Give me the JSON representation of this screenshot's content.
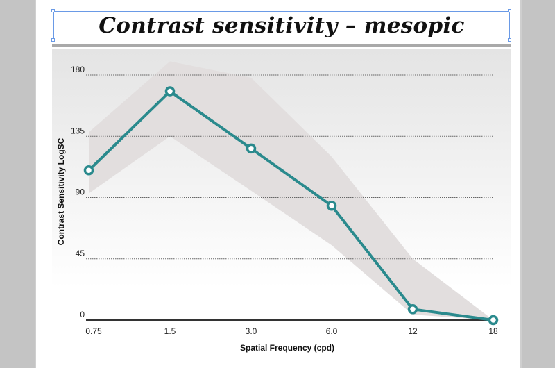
{
  "chart_data": {
    "type": "line",
    "title": "Contrast sensitivity – mesopic",
    "xlabel": "Spatial Frequency (cpd)",
    "ylabel": "Contrast Sensitivity LogSC",
    "categories": [
      "0.75",
      "1.5",
      "3.0",
      "6.0",
      "12",
      "18"
    ],
    "y_ticks": [
      "0",
      "45",
      "90",
      "135",
      "180"
    ],
    "ylim": [
      0,
      180
    ],
    "series": [
      {
        "values": [
          110,
          168,
          126,
          84,
          8,
          0
        ],
        "color": "#2a8a8d"
      }
    ],
    "band": {
      "upper": [
        138,
        190,
        178,
        120,
        45,
        0
      ],
      "lower": [
        93,
        135,
        95,
        55,
        4,
        0
      ],
      "color": "#e2dede"
    },
    "grid": true
  }
}
